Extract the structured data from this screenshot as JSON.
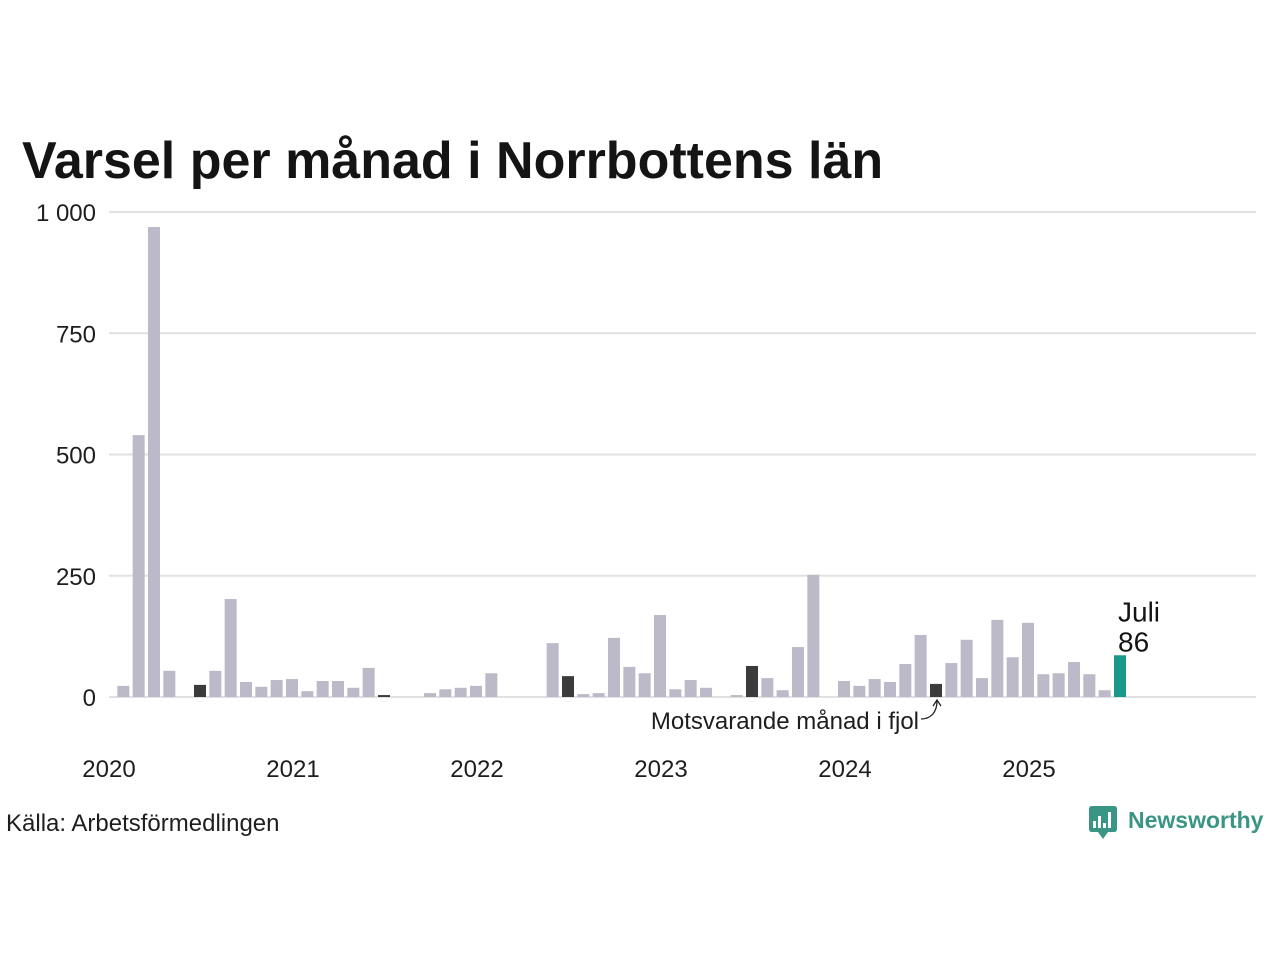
{
  "source": "Källa: Arbetsförmedlingen",
  "brand": {
    "name": "Newsworthy",
    "icon": "newsworthy-logo-icon",
    "color": "#3b9585"
  },
  "colors": {
    "bar": "#bcbac8",
    "previous_years": "#3b3b3b",
    "current": "#17998a",
    "grid": "#e1e1e1"
  },
  "chart_data": {
    "type": "bar",
    "title": "Varsel per månad i Norrbottens län",
    "ylim": [
      0,
      1000
    ],
    "yticks": [
      0,
      250,
      500,
      750,
      1000
    ],
    "ytick_labels": [
      "0",
      "250",
      "500",
      "750",
      "1 000"
    ],
    "xticks": [
      "2020-01",
      "2021-01",
      "2022-01",
      "2023-01",
      "2024-01",
      "2025-01"
    ],
    "xtick_labels": [
      "2020",
      "2021",
      "2022",
      "2023",
      "2024",
      "2025"
    ],
    "grid": "horizontal",
    "legend": "none",
    "x": [
      "2020-01",
      "2020-02",
      "2020-03",
      "2020-04",
      "2020-05",
      "2020-06",
      "2020-07",
      "2020-08",
      "2020-09",
      "2020-10",
      "2020-11",
      "2020-12",
      "2021-01",
      "2021-02",
      "2021-03",
      "2021-04",
      "2021-05",
      "2021-06",
      "2021-07",
      "2021-08",
      "2021-09",
      "2021-10",
      "2021-11",
      "2021-12",
      "2022-01",
      "2022-02",
      "2022-03",
      "2022-04",
      "2022-05",
      "2022-06",
      "2022-07",
      "2022-08",
      "2022-09",
      "2022-10",
      "2022-11",
      "2022-12",
      "2023-01",
      "2023-02",
      "2023-03",
      "2023-04",
      "2023-05",
      "2023-06",
      "2023-07",
      "2023-08",
      "2023-09",
      "2023-10",
      "2023-11",
      "2023-12",
      "2024-01",
      "2024-02",
      "2024-03",
      "2024-04",
      "2024-05",
      "2024-06",
      "2024-07",
      "2024-08",
      "2024-09",
      "2024-10",
      "2024-11",
      "2024-12",
      "2025-01",
      "2025-02",
      "2025-03",
      "2025-04",
      "2025-05",
      "2025-06",
      "2025-07"
    ],
    "values": [
      0,
      23,
      540,
      969,
      54,
      0,
      25,
      54,
      202,
      31,
      21,
      35,
      37,
      12,
      33,
      33,
      19,
      60,
      4,
      0,
      0,
      8,
      16,
      19,
      23,
      49,
      0,
      0,
      0,
      111,
      43,
      6,
      8,
      122,
      62,
      49,
      169,
      16,
      35,
      19,
      0,
      4,
      64,
      39,
      14,
      103,
      252,
      0,
      33,
      23,
      37,
      31,
      68,
      128,
      27,
      70,
      118,
      39,
      159,
      82,
      153,
      47,
      49,
      72,
      47,
      14,
      86
    ],
    "highlight": {
      "current": "2025-07",
      "same_month_previous_years": [
        "2020-07",
        "2021-07",
        "2022-07",
        "2023-07",
        "2024-07"
      ]
    },
    "annotations": [
      {
        "x": "2025-07",
        "lines": [
          "Juli",
          "86"
        ]
      },
      {
        "x": "2024-07",
        "text": "Motsvarande månad i fjol",
        "arrow": true
      }
    ]
  }
}
